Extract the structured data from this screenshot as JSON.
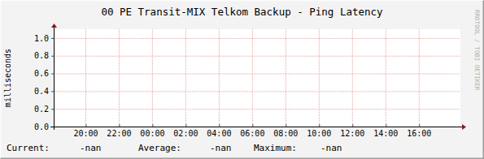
{
  "chart_data": {
    "type": "line",
    "title": "00 PE Transit-MIX Telkom Backup - Ping Latency",
    "y_label": "milliseconds",
    "watermark": "RRDTOOL / TOBI OETIKER",
    "xlim": [
      18.1,
      42.5
    ],
    "xticks": [
      {
        "value": 20,
        "label": "20:00"
      },
      {
        "value": 22,
        "label": "22:00"
      },
      {
        "value": 24,
        "label": "00:00"
      },
      {
        "value": 26,
        "label": "02:00"
      },
      {
        "value": 28,
        "label": "04:00"
      },
      {
        "value": 30,
        "label": "06:00"
      },
      {
        "value": 32,
        "label": "08:00"
      },
      {
        "value": 34,
        "label": "10:00"
      },
      {
        "value": 36,
        "label": "12:00"
      },
      {
        "value": 38,
        "label": "14:00"
      },
      {
        "value": 40,
        "label": "16:00"
      }
    ],
    "ylim": [
      0,
      1.1
    ],
    "yticks": [
      {
        "value": 0,
        "label": "0.0"
      },
      0.2,
      0.4,
      0.6,
      0.8,
      {
        "value": 1,
        "label": "1.0"
      }
    ],
    "grid": true,
    "summary": [
      {
        "label": "Current:",
        "value": "-nan"
      },
      {
        "label": "Average:",
        "value": "-nan"
      },
      {
        "label": "Maximum:",
        "value": "-nan"
      }
    ]
  }
}
